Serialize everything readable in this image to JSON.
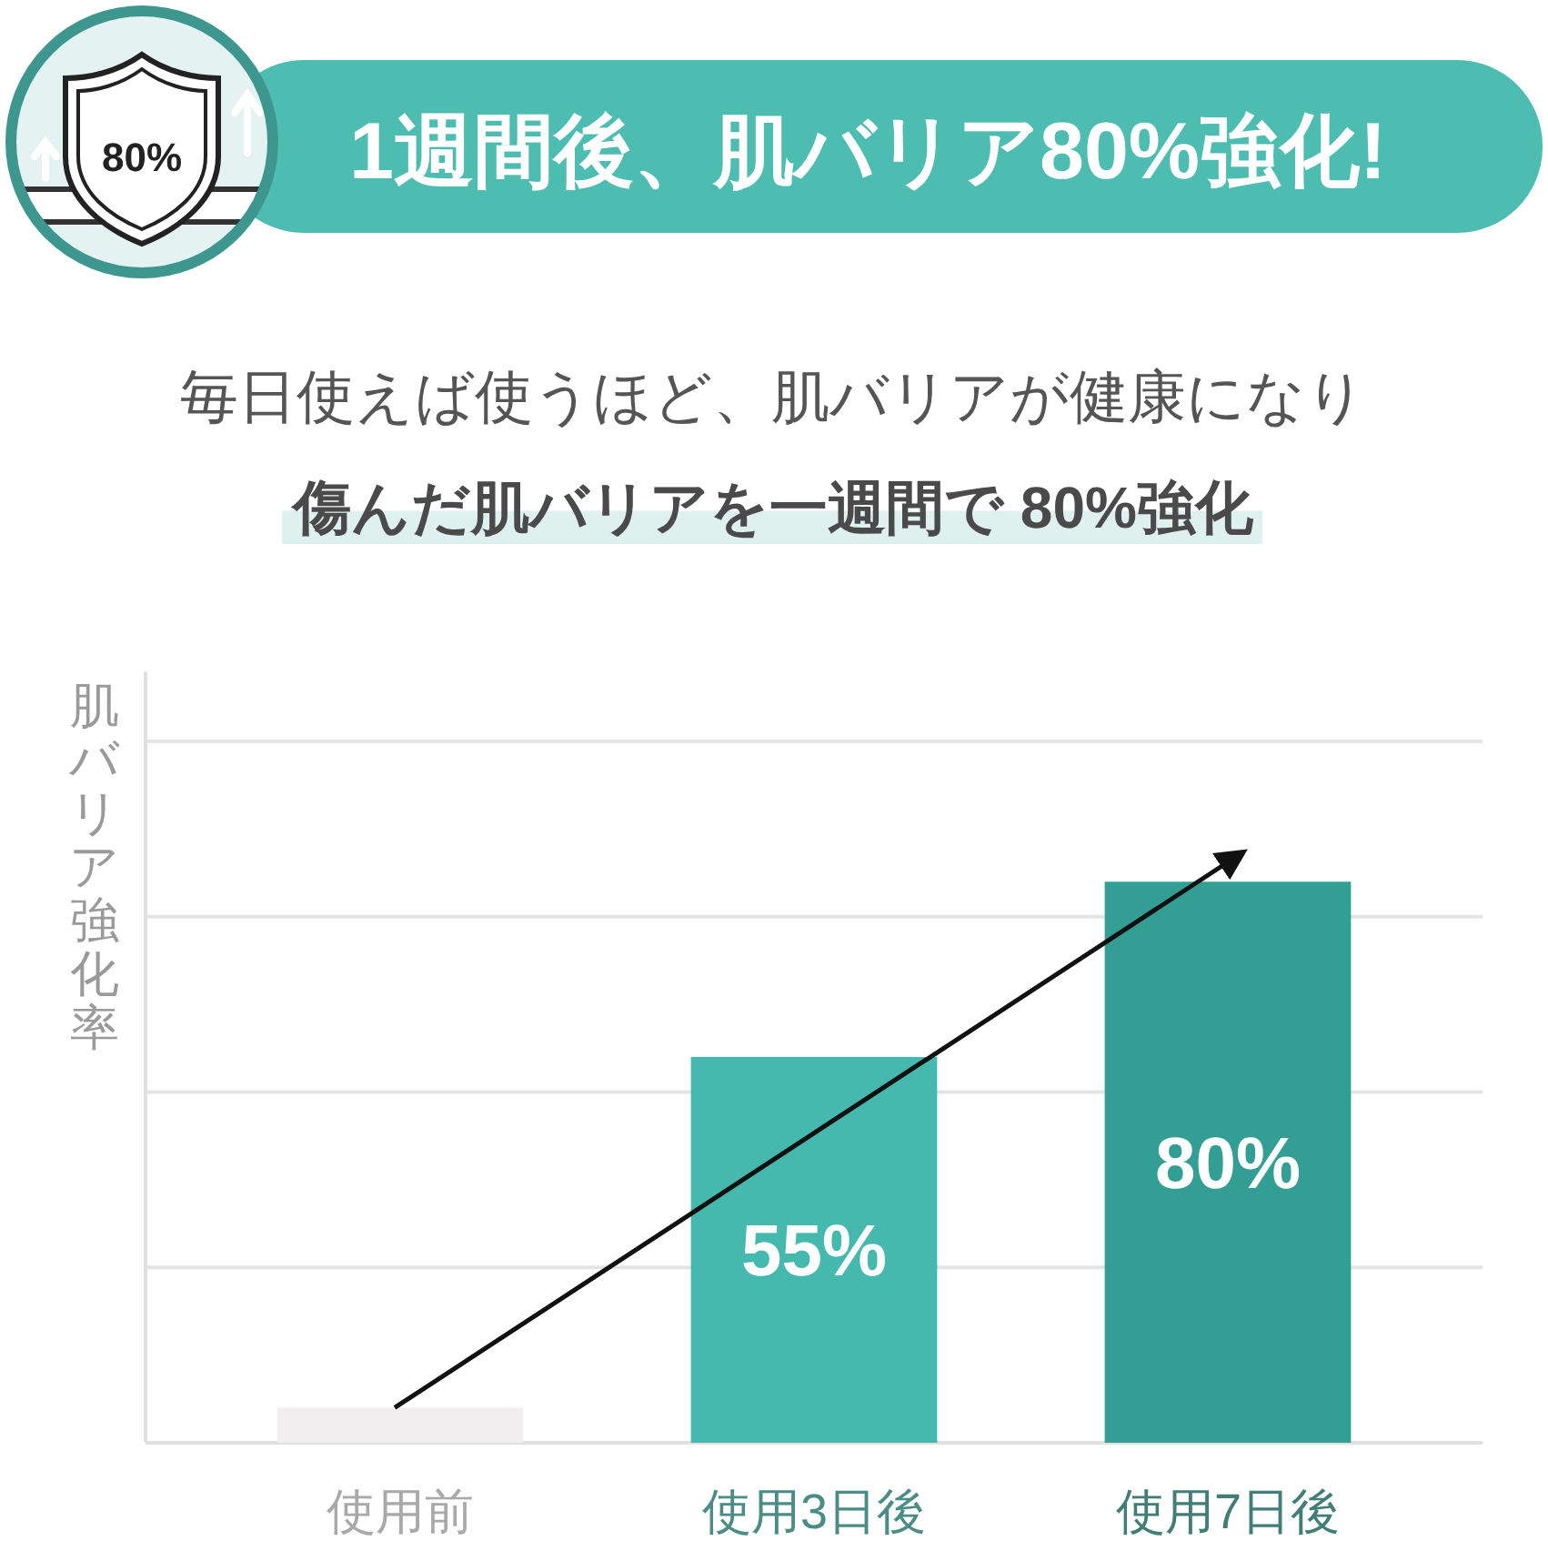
{
  "chart_data": {
    "type": "bar",
    "title": "1週間後、肌バリア80%強化!",
    "subtitle": "毎日使えば使うほど、肌バリアが健康になり",
    "ylabel": "肌バリア強化率",
    "annotations": [
      "80%",
      "傷んだ肌バリアを一週間で 80%強化"
    ],
    "categories": [
      "使用前",
      "使用3日後",
      "使用7日後"
    ],
    "values": [
      5,
      55,
      80
    ],
    "colors": [
      "#f0eeee",
      "#45b9ae",
      "#339f94"
    ],
    "value_labels": [
      null,
      "55%",
      "80%"
    ],
    "ylim": [
      0,
      110
    ],
    "yticks": [
      {
        "value": 25,
        "label": null
      },
      {
        "value": 50,
        "label": null
      },
      {
        "value": 75,
        "label": null
      },
      {
        "value": 100,
        "label": null
      }
    ],
    "grid": "y",
    "tick_labels": "x"
  }
}
